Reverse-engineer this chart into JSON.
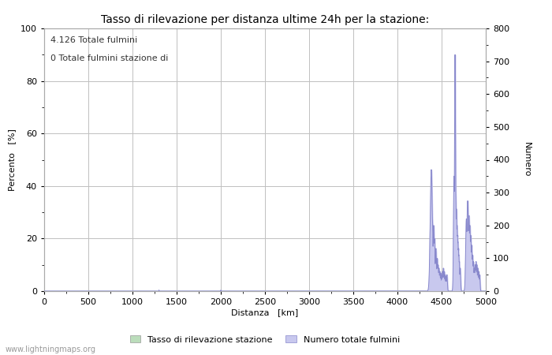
{
  "title": "Tasso di rilevazione per distanza ultime 24h per la stazione:",
  "xlabel": "Distanza   [km]",
  "ylabel_left": "Percento   [%]",
  "ylabel_right": "Numero",
  "annotation_line1": "4.126 Totale fulmini",
  "annotation_line2": "0 Totale fulmini stazione di",
  "legend_label_green": "Tasso di rilevazione stazione",
  "legend_label_blue": "Numero totale fulmini",
  "watermark": "www.lightningmaps.org",
  "xlim": [
    0,
    5000
  ],
  "ylim_left": [
    0,
    100
  ],
  "ylim_right": [
    0,
    800
  ],
  "xticks": [
    0,
    500,
    1000,
    1500,
    2000,
    2500,
    3000,
    3500,
    4000,
    4500,
    5000
  ],
  "yticks_left": [
    0,
    20,
    40,
    60,
    80,
    100
  ],
  "yticks_right": [
    0,
    100,
    200,
    300,
    400,
    500,
    600,
    700,
    800
  ],
  "bg_color": "#ffffff",
  "plot_bg_color": "#ffffff",
  "grid_color": "#c0c0c0",
  "line_color": "#8888cc",
  "fill_color": "#c8c8ee",
  "green_color": "#bbddbb",
  "title_fontsize": 10,
  "axis_fontsize": 8,
  "tick_fontsize": 8,
  "annotation_fontsize": 8
}
